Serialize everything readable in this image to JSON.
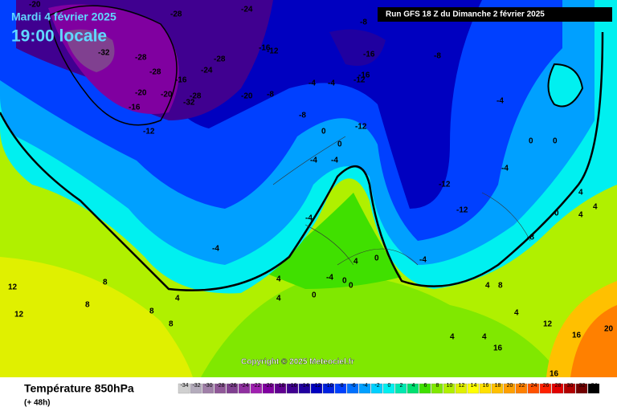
{
  "header": {
    "date": "Mardi 4 février 2025",
    "time": "19:00 locale",
    "run": "Run GFS 18 Z du Dimanche 2 février 2025"
  },
  "copyright": "Copyright © 2025 Meteociel.fr",
  "footer": {
    "title": "Température 850hPa",
    "lead": "(+ 48h)"
  },
  "legend": {
    "ticks": [
      -34,
      -32,
      -30,
      -28,
      -26,
      -24,
      -22,
      -20,
      -18,
      -16,
      -14,
      -12,
      -10,
      -8,
      -6,
      -4,
      -2,
      0,
      2,
      4,
      6,
      8,
      10,
      12,
      14,
      16,
      18,
      20,
      22,
      24,
      26,
      28,
      30,
      32,
      34
    ],
    "colors": [
      "#d0d0d0",
      "#b4acbc",
      "#a080a8",
      "#905898",
      "#804090",
      "#9030a0",
      "#a020b0",
      "#8000a0",
      "#600090",
      "#400090",
      "#2000a0",
      "#0000c0",
      "#0020e0",
      "#0040ff",
      "#0070ff",
      "#00a0ff",
      "#00d0ff",
      "#00f0f0",
      "#00e8b0",
      "#00e070",
      "#40e000",
      "#80e800",
      "#b0f000",
      "#e0f000",
      "#ffff00",
      "#ffe000",
      "#ffc000",
      "#ffa000",
      "#ff8000",
      "#ff5000",
      "#ff2000",
      "#e00000",
      "#b00000",
      "#700000",
      "#000000"
    ]
  },
  "map_labels": [
    "-20",
    "-28",
    "-24",
    "-32",
    "-28",
    "-28",
    "-16",
    "-24",
    "-28",
    "-20",
    "-16",
    "-20",
    "-32",
    "-28",
    "-20",
    "-16",
    "-12",
    "-12",
    "-8",
    "-8",
    "-4",
    "-4",
    "-12",
    "-16",
    "-8",
    "-16",
    "-8",
    "0",
    "-4",
    "-4",
    "0",
    "-12",
    "-4",
    "-4",
    "0",
    "-4",
    "-12",
    "-12",
    "-4",
    "0",
    "0",
    "-8",
    "-4",
    "4",
    "4",
    "0",
    "0",
    "-4",
    "4",
    "4",
    "8",
    "8",
    "8",
    "8",
    "12",
    "12",
    "4",
    "0",
    "4",
    "4",
    "8",
    "12",
    "16",
    "20",
    "16",
    "16",
    "4",
    "4",
    "0",
    "4",
    "4"
  ]
}
